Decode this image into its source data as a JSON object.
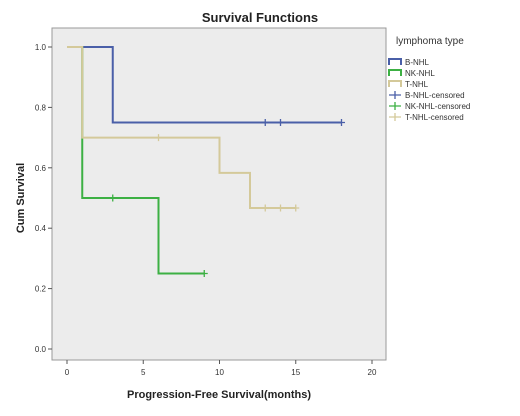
{
  "chart_data": {
    "type": "line",
    "title": "Survival Functions",
    "xlabel": "Progression-Free Survival(months)",
    "ylabel": "Cum Survival",
    "xlim": [
      0,
      20
    ],
    "ylim": [
      0,
      1.0
    ],
    "x_ticks": [
      "0",
      "5",
      "10",
      "15",
      "20"
    ],
    "y_ticks": [
      "0.0",
      "0.2",
      "0.4",
      "0.6",
      "0.8",
      "1.0"
    ],
    "grid": false,
    "legend": {
      "title": "lymphoma type",
      "placement": "right",
      "entries": [
        "B-NHL",
        "NK-NHL",
        "T-NHL",
        "B-NHL-censored",
        "NK-NHL-censored",
        "T-NHL-censored"
      ]
    },
    "series": [
      {
        "name": "B-NHL",
        "color": "#4a5fa8",
        "steps": [
          [
            0,
            1.0
          ],
          [
            3,
            0.75
          ],
          [
            18,
            0.75
          ]
        ],
        "censored": [
          [
            13,
            0.75
          ],
          [
            14,
            0.75
          ],
          [
            18,
            0.75
          ]
        ]
      },
      {
        "name": "NK-NHL",
        "color": "#3cb043",
        "steps": [
          [
            0,
            1.0
          ],
          [
            1,
            0.5
          ],
          [
            6,
            0.25
          ],
          [
            9,
            0.25
          ]
        ],
        "censored": [
          [
            3,
            0.5
          ],
          [
            9,
            0.25
          ]
        ]
      },
      {
        "name": "T-NHL",
        "color": "#d4c99a",
        "steps": [
          [
            0,
            1.0
          ],
          [
            1,
            0.7
          ],
          [
            10,
            0.583
          ],
          [
            12,
            0.467
          ],
          [
            15,
            0.467
          ]
        ],
        "censored": [
          [
            6,
            0.7
          ],
          [
            13,
            0.467
          ],
          [
            14,
            0.467
          ],
          [
            15,
            0.467
          ]
        ]
      }
    ]
  }
}
